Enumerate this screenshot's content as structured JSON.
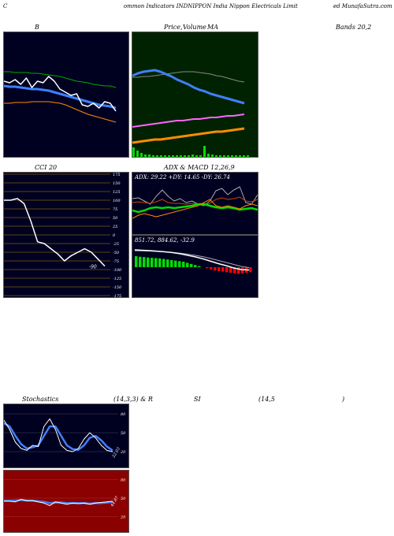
{
  "header": {
    "left": "C",
    "center": "ommon  Indicators INDNIPPON  India  Nippon  Electricals Limit",
    "right": "ed MunafaSutra.com"
  },
  "labels": {
    "b": "B",
    "price": "Price,",
    "price_overlap": "Volume",
    "ma": "MA",
    "bands": "Bands 20,2",
    "cci": "CCI 20",
    "adx_title": "ADX  & MACD 12,26,9",
    "stoch": "Stochastics",
    "stoch_params": "(14,3,3) & R",
    "si": "SI",
    "rsi_params": "(14,5",
    "rsi_close": ")"
  },
  "watermark": "MunafaSutra.com",
  "colors": {
    "panel_dark": "#000020",
    "panel_green": "#002200",
    "panel_red": "#8b0000",
    "blue": "#3f7fff",
    "white": "#ffffff",
    "orange": "#ff8c00",
    "green": "#00dd00",
    "red": "#ff0000"
  },
  "chart_data": [
    {
      "type": "line",
      "panel": "bollinger",
      "series": [
        {
          "values": [
            62,
            64,
            60,
            66,
            58,
            70,
            62,
            64,
            56,
            62,
            72,
            76,
            80,
            78,
            92,
            94,
            90,
            96,
            88,
            90,
            100
          ]
        },
        {
          "values": [
            68,
            69,
            69,
            70,
            71,
            72,
            72,
            73,
            74,
            76,
            78,
            80,
            82,
            84,
            86,
            88,
            90,
            92,
            93,
            94,
            96
          ]
        },
        {
          "values": [
            50,
            50,
            51,
            51,
            51,
            52,
            52,
            53,
            54,
            55,
            56,
            58,
            60,
            62,
            63,
            64,
            66,
            67,
            68,
            68,
            70
          ]
        },
        {
          "values": [
            90,
            90,
            89,
            89,
            89,
            88,
            88,
            88,
            88,
            89,
            90,
            92,
            95,
            98,
            101,
            104,
            106,
            108,
            110,
            112,
            114
          ]
        }
      ]
    },
    {
      "type": "line",
      "panel": "price-ma",
      "series": [
        {
          "values": [
            55,
            52,
            50,
            49,
            48,
            50,
            53,
            56,
            60,
            63,
            66,
            70,
            73,
            75,
            78,
            80,
            82,
            84,
            86,
            88,
            90
          ]
        },
        {
          "values": [
            57,
            57,
            56,
            56,
            55,
            54,
            53,
            52,
            51,
            50,
            50,
            50,
            51,
            52,
            53,
            55,
            56,
            58,
            60,
            62,
            63
          ]
        },
        {
          "values": [
            120,
            119,
            118,
            117,
            116,
            115,
            114,
            113,
            112,
            112,
            111,
            110,
            110,
            109,
            108,
            108,
            107,
            106,
            106,
            105,
            104
          ]
        },
        {
          "values": [
            140,
            139,
            138,
            137,
            136,
            136,
            135,
            134,
            133,
            132,
            131,
            130,
            129,
            128,
            127,
            126,
            126,
            125,
            124,
            123,
            122
          ]
        }
      ],
      "volume": [
        12,
        8,
        5,
        3,
        3,
        2,
        2,
        2,
        2,
        2,
        2,
        2,
        2,
        2,
        2,
        3,
        2,
        2,
        14,
        4,
        3,
        2,
        2,
        2,
        2,
        2,
        2,
        2,
        2,
        2
      ]
    },
    {
      "type": "line",
      "panel": "cci",
      "ticks": [
        "175",
        "150",
        "125",
        "100",
        "75",
        "50",
        "25",
        "0",
        "-25",
        "-50",
        "-75",
        "-100",
        "-125",
        "-150",
        "-175"
      ],
      "values": [
        100,
        100,
        105,
        90,
        40,
        -20,
        -25,
        -40,
        -55,
        -75,
        -60,
        -50,
        -40,
        -50,
        -70,
        -90
      ],
      "value_label": "-90"
    },
    {
      "type": "line",
      "panel": "adx",
      "readout": "ADX: 29.22  +DY: 14.65 -DY: 26.74",
      "series": [
        {
          "values": [
            45,
            46,
            42,
            38,
            48,
            56,
            48,
            42,
            45,
            40,
            42,
            38,
            36,
            42,
            55,
            58,
            50,
            56,
            60,
            40,
            38,
            50
          ]
        },
        {
          "values": [
            40,
            41,
            40,
            39,
            41,
            44,
            40,
            39,
            39,
            38,
            39,
            38,
            37,
            39,
            44,
            46,
            44,
            45,
            47,
            42,
            41,
            44
          ]
        },
        {
          "values": [
            30,
            28,
            30,
            33,
            34,
            33,
            34,
            33,
            34,
            35,
            36,
            38,
            38,
            36,
            34,
            33,
            34,
            33,
            31,
            32,
            33,
            31
          ]
        },
        {
          "values": [
            20,
            24,
            26,
            24,
            22,
            24,
            26,
            28,
            30,
            32,
            34,
            36,
            40,
            44,
            36,
            34,
            36,
            34,
            32,
            36,
            38,
            36
          ]
        }
      ]
    },
    {
      "type": "bar",
      "panel": "macd",
      "readout": "851.72,  884.62,  -32.9",
      "histogram": [
        40,
        38,
        37,
        35,
        34,
        33,
        32,
        30,
        28,
        26,
        24,
        22,
        20,
        16,
        12,
        8,
        4,
        0,
        -4,
        -8,
        -12,
        -14,
        -16,
        -18,
        -20,
        -22,
        -24,
        -22,
        -20,
        -18
      ],
      "series": [
        {
          "values": [
            80,
            78,
            76,
            73,
            70,
            66,
            60,
            52,
            44,
            34,
            22,
            10,
            0,
            -12,
            -20,
            -22
          ]
        },
        {
          "values": [
            76,
            75,
            74,
            72,
            70,
            67,
            63,
            58,
            52,
            45,
            36,
            26,
            16,
            6,
            -4,
            -10
          ]
        }
      ]
    },
    {
      "type": "line",
      "panel": "stochastics",
      "ticks": [
        "80",
        "50",
        "20"
      ],
      "values_label": "22.03",
      "series": [
        {
          "values": [
            70,
            55,
            35,
            25,
            22,
            30,
            28,
            60,
            72,
            55,
            30,
            22,
            20,
            25,
            40,
            50,
            42,
            30,
            22,
            20
          ]
        },
        {
          "values": [
            65,
            60,
            45,
            32,
            25,
            27,
            30,
            45,
            60,
            60,
            45,
            30,
            24,
            23,
            30,
            42,
            45,
            38,
            28,
            22
          ]
        }
      ]
    },
    {
      "type": "line",
      "panel": "rsi",
      "ticks": [
        "80",
        "50",
        "20"
      ],
      "values_label": "44.87",
      "series": [
        {
          "values": [
            45,
            45,
            44,
            48,
            46,
            46,
            44,
            42,
            38,
            44,
            42,
            40,
            42,
            41,
            42,
            40,
            42,
            43,
            44,
            45
          ]
        },
        {
          "values": [
            46,
            46,
            46,
            47,
            46,
            46,
            45,
            44,
            42,
            43,
            43,
            42,
            42,
            42,
            42,
            41,
            42,
            42,
            43,
            44
          ]
        }
      ]
    }
  ]
}
